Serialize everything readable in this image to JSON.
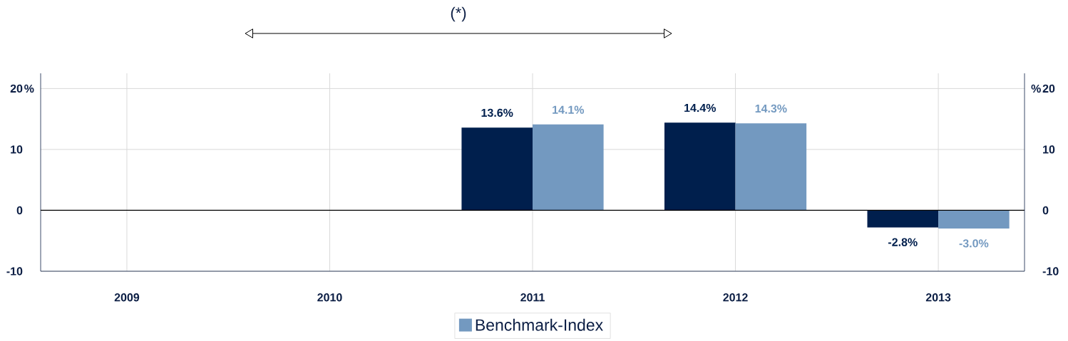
{
  "chart_data": {
    "type": "bar",
    "categories": [
      "2009",
      "2010",
      "2011",
      "2012",
      "2013"
    ],
    "series": [
      {
        "color": "#001f4d",
        "values": [
          null,
          null,
          13.6,
          14.4,
          -2.8
        ],
        "value_labels": [
          null,
          null,
          "13.6%",
          "14.4%",
          "-2.8%"
        ]
      },
      {
        "name": "Benchmark-Index",
        "color": "#7399c0",
        "values": [
          null,
          null,
          14.1,
          14.3,
          -3.0
        ],
        "value_labels": [
          null,
          null,
          "14.1%",
          "14.3%",
          "-3.0%"
        ]
      }
    ],
    "ylim": [
      -10,
      22.5
    ],
    "yticks": [
      -10,
      0,
      10,
      20
    ],
    "y2lim": [
      -10,
      22.5
    ],
    "y2ticks": [
      -10,
      0,
      10,
      20
    ],
    "ylabel": "%",
    "y2label": "%",
    "annotations": [
      "(*)"
    ],
    "grid": true,
    "legend": "bottom"
  }
}
